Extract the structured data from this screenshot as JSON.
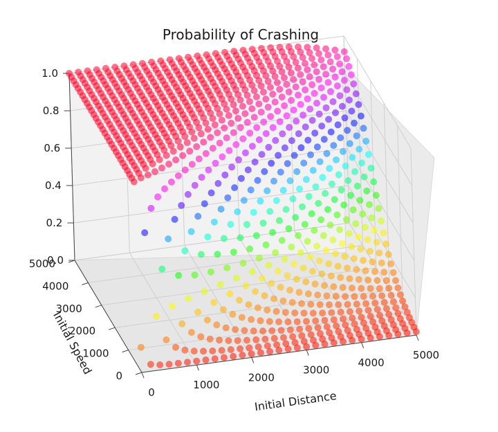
{
  "chart_data": {
    "type": "scatter",
    "projection": "3d",
    "title": "Probability of Crashing",
    "xlabel": "Initial Distance",
    "ylabel": "Initial Speed",
    "zlabel": "",
    "xlim": [
      0,
      5000
    ],
    "ylim": [
      0,
      5000
    ],
    "zlim": [
      0.0,
      1.0
    ],
    "x_ticks": [
      "0",
      "1000",
      "2000",
      "3000",
      "4000",
      "5000"
    ],
    "y_ticks": [
      "0",
      "1000",
      "2000",
      "3000",
      "4000",
      "5000"
    ],
    "z_ticks": [
      "0.0",
      "0.2",
      "0.4",
      "0.6",
      "0.8",
      "1.0"
    ],
    "grid": true,
    "colormap": "gist_rainbow",
    "colormap_colors": [
      "#ff0000",
      "#ff8000",
      "#ffff00",
      "#00ff00",
      "#00ffff",
      "#0000ff",
      "#ff00ff",
      "#ff0029"
    ],
    "grid_points_per_axis": 31,
    "surface": "probability of crashing rises from 0 to 1 as initial speed increases relative to initial distance; region with low speed and any distance is ~0, high speed with short distance is ~1"
  }
}
